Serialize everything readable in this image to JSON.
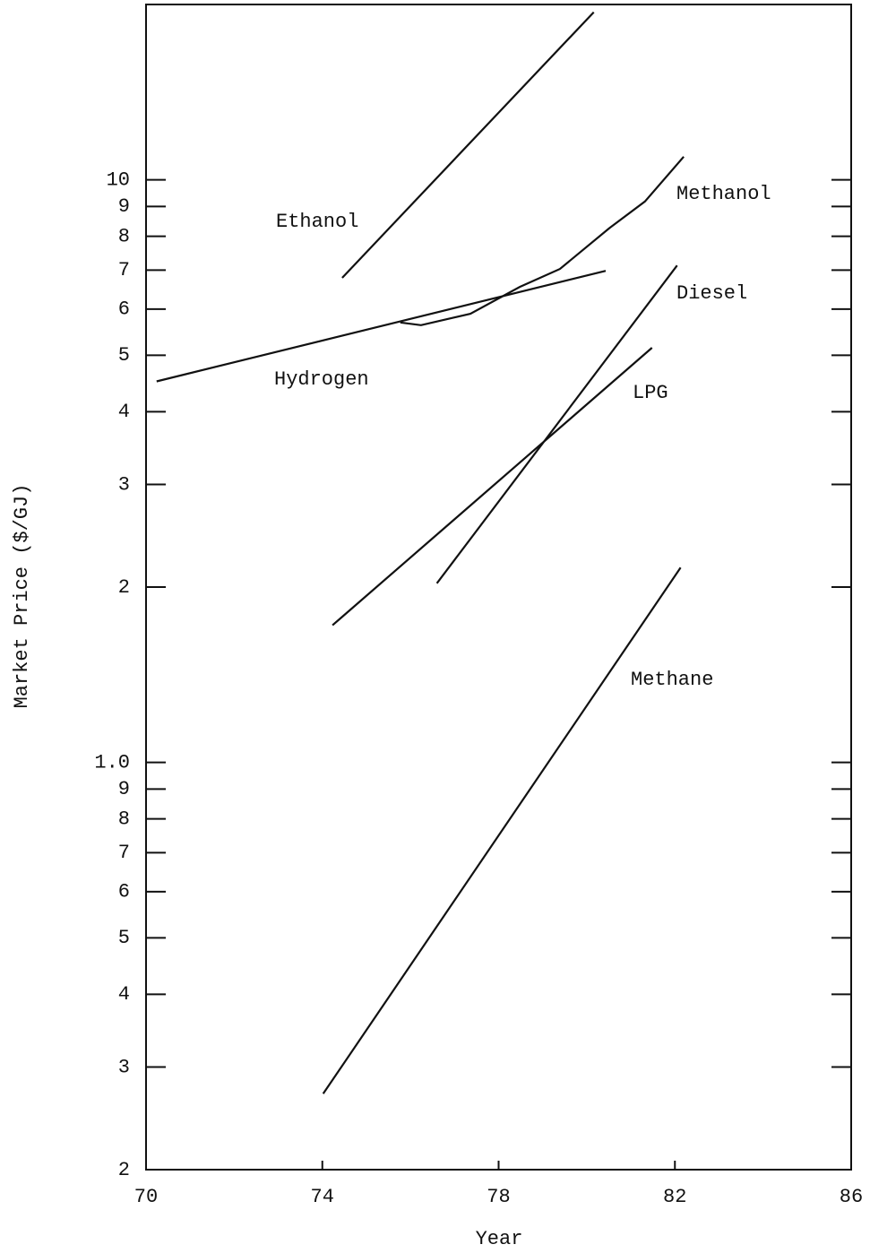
{
  "chart_data": {
    "type": "line",
    "log_y": true,
    "x_label": "Year",
    "y_label": "Market Price ($/GJ)",
    "xlim": [
      70,
      86
    ],
    "xticks": [
      70,
      74,
      78,
      82,
      86
    ],
    "ylim": [
      0.2,
      20
    ],
    "yticks": [
      {
        "value": 0.2,
        "label": "2"
      },
      {
        "value": 0.3,
        "label": "3"
      },
      {
        "value": 0.4,
        "label": "4"
      },
      {
        "value": 0.5,
        "label": "5"
      },
      {
        "value": 0.6,
        "label": "6"
      },
      {
        "value": 0.7,
        "label": "7"
      },
      {
        "value": 0.8,
        "label": "8"
      },
      {
        "value": 0.9,
        "label": "9"
      },
      {
        "value": 1,
        "label": "1.0"
      },
      2,
      3,
      4,
      5,
      6,
      7,
      8,
      9,
      10
    ],
    "series": [
      {
        "name": "Ethanol",
        "color": "#111111",
        "x": [
          74.45,
          80.16
        ],
        "values": [
          6.79,
          19.4
        ]
      },
      {
        "name": "Methanol",
        "color": "#111111",
        "x": [
          75.77,
          76.24,
          77.36,
          78.48,
          79.39,
          80.51,
          81.32,
          82.2
        ],
        "values": [
          5.69,
          5.63,
          5.89,
          6.55,
          7.03,
          8.26,
          9.18,
          10.96
        ]
      },
      {
        "name": "Diesel",
        "color": "#111111",
        "x": [
          76.6,
          82.05
        ],
        "values": [
          2.03,
          7.13
        ]
      },
      {
        "name": "Hydrogen",
        "color": "#111111",
        "x": [
          70.24,
          80.43
        ],
        "values": [
          4.51,
          6.98
        ]
      },
      {
        "name": "LPG",
        "color": "#111111",
        "x": [
          74.23,
          81.48
        ],
        "values": [
          1.72,
          5.15
        ]
      },
      {
        "name": "Methane",
        "color": "#111111",
        "x": [
          74.02,
          82.13
        ],
        "values": [
          0.27,
          2.16
        ]
      }
    ]
  }
}
